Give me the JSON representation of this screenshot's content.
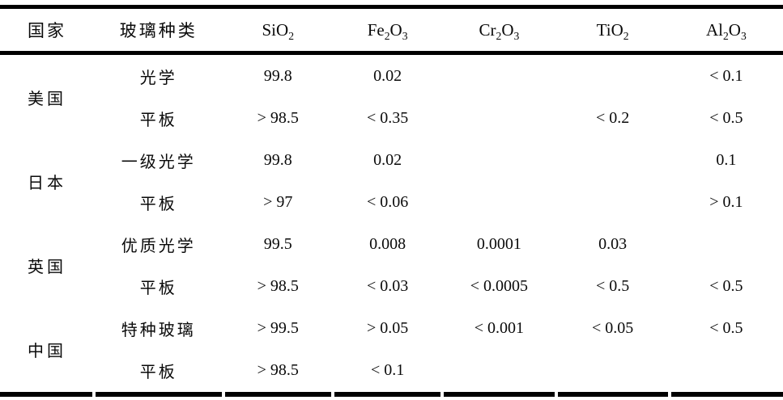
{
  "table": {
    "columns": [
      {
        "key": "country",
        "parts": [
          {
            "t": "国家"
          }
        ]
      },
      {
        "key": "type",
        "parts": [
          {
            "t": "玻璃种类"
          }
        ]
      },
      {
        "key": "sio2",
        "parts": [
          {
            "t": "SiO"
          },
          {
            "t": "2",
            "sub": true
          }
        ]
      },
      {
        "key": "fe2o3",
        "parts": [
          {
            "t": "Fe"
          },
          {
            "t": "2",
            "sub": true
          },
          {
            "t": "O"
          },
          {
            "t": "3",
            "sub": true
          }
        ]
      },
      {
        "key": "cr2o3",
        "parts": [
          {
            "t": "Cr"
          },
          {
            "t": "2",
            "sub": true
          },
          {
            "t": "O"
          },
          {
            "t": "3",
            "sub": true
          }
        ]
      },
      {
        "key": "tio2",
        "parts": [
          {
            "t": "TiO"
          },
          {
            "t": "2",
            "sub": true
          }
        ]
      },
      {
        "key": "al2o3",
        "parts": [
          {
            "t": "Al"
          },
          {
            "t": "2",
            "sub": true
          },
          {
            "t": "O"
          },
          {
            "t": "3",
            "sub": true
          }
        ]
      }
    ],
    "groups": [
      {
        "country": "美国",
        "rows": [
          {
            "type": "光学",
            "sio2": "99.8",
            "fe2o3": "0.02",
            "cr2o3": "",
            "tio2": "",
            "al2o3": "< 0.1"
          },
          {
            "type": "平板",
            "sio2": "> 98.5",
            "fe2o3": "< 0.35",
            "cr2o3": "",
            "tio2": "< 0.2",
            "al2o3": "< 0.5"
          }
        ]
      },
      {
        "country": "日本",
        "rows": [
          {
            "type": "一级光学",
            "sio2": "99.8",
            "fe2o3": "0.02",
            "cr2o3": "",
            "tio2": "",
            "al2o3": "0.1"
          },
          {
            "type": "平板",
            "sio2": "> 97",
            "fe2o3": "< 0.06",
            "cr2o3": "",
            "tio2": "",
            "al2o3": "> 0.1"
          }
        ]
      },
      {
        "country": "英国",
        "rows": [
          {
            "type": "优质光学",
            "sio2": "99.5",
            "fe2o3": "0.008",
            "cr2o3": "0.0001",
            "tio2": "0.03",
            "al2o3": ""
          },
          {
            "type": "平板",
            "sio2": "> 98.5",
            "fe2o3": "< 0.03",
            "cr2o3": "< 0.0005",
            "tio2": "< 0.5",
            "al2o3": "< 0.5"
          }
        ]
      },
      {
        "country": "中国",
        "rows": [
          {
            "type": "特种玻璃",
            "sio2": "> 99.5",
            "fe2o3": "> 0.05",
            "cr2o3": "< 0.001",
            "tio2": "< 0.05",
            "al2o3": "< 0.5"
          },
          {
            "type": "平板",
            "sio2": "> 98.5",
            "fe2o3": "< 0.1",
            "cr2o3": "",
            "tio2": "",
            "al2o3": ""
          }
        ]
      }
    ]
  }
}
